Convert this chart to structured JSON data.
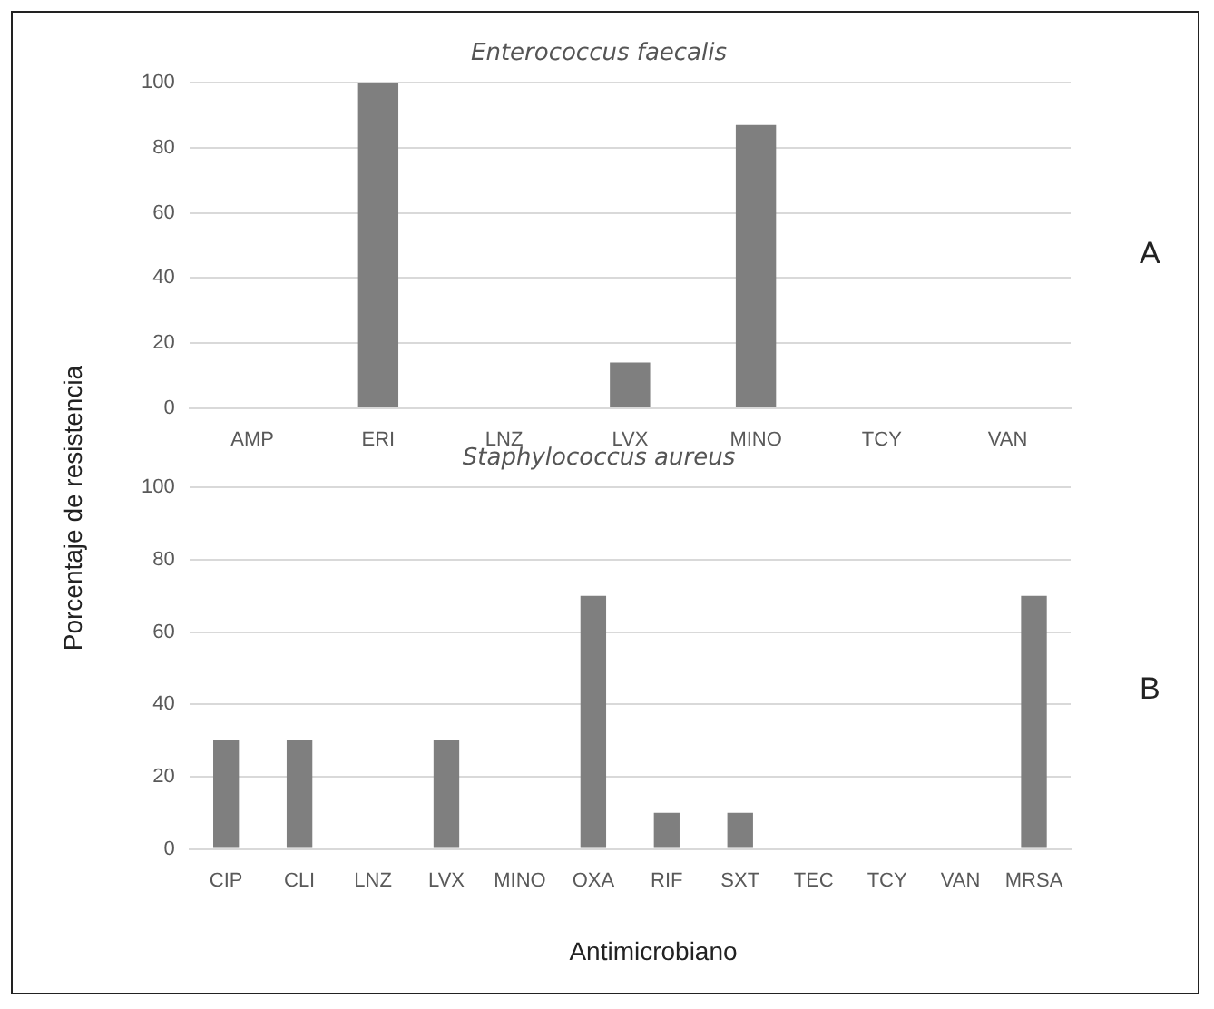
{
  "chart_data": [
    {
      "type": "bar",
      "title": "Enterococcus faecalis",
      "ylabel": "Porcentaje de resistencia",
      "categories": [
        "AMP",
        "ERI",
        "LNZ",
        "LVX",
        "MINO",
        "TCY",
        "VAN"
      ],
      "values": [
        0,
        100,
        0,
        14,
        87,
        0,
        0
      ],
      "color": "#7f7f7f",
      "ylim": [
        0,
        100
      ],
      "yticks": [
        0,
        20,
        40,
        60,
        80,
        100
      ],
      "grid": "y",
      "annotations": [
        "A"
      ]
    },
    {
      "type": "bar",
      "title": "Staphylococcus aureus",
      "xlabel": "Antimicrobiano",
      "categories": [
        "CIP",
        "CLI",
        "LNZ",
        "LVX",
        "MINO",
        "OXA",
        "RIF",
        "SXT",
        "TEC",
        "TCY",
        "VAN",
        "MRSA"
      ],
      "values": [
        30,
        30,
        0,
        30,
        0,
        70,
        10,
        10,
        0,
        0,
        0,
        70
      ],
      "color": "#7f7f7f",
      "ylim": [
        0,
        100
      ],
      "yticks": [
        0,
        20,
        40,
        60,
        80,
        100
      ],
      "grid": "y",
      "annotations": [
        "B"
      ]
    }
  ]
}
